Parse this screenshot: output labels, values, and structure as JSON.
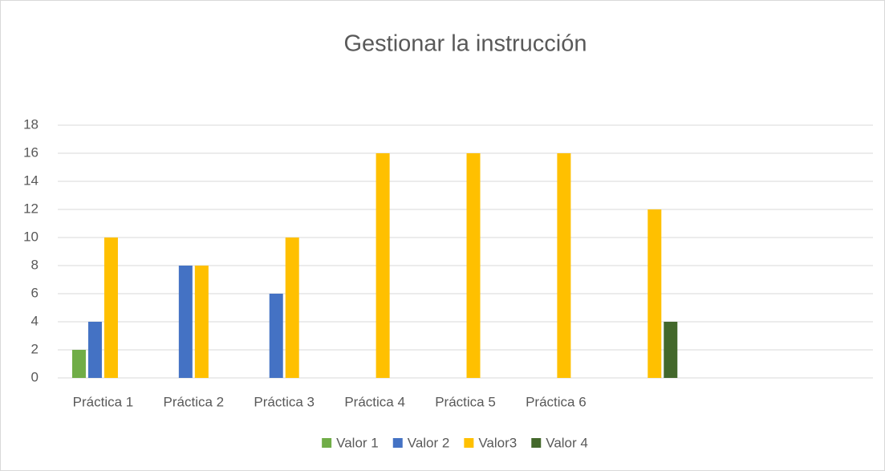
{
  "chart_data": {
    "type": "bar",
    "title": "Gestionar la instrucción",
    "categories": [
      "Práctica 1",
      "Práctica 2",
      "Práctica 3",
      "Práctica 4",
      "Práctica 5",
      "Práctica 6",
      null,
      null,
      null
    ],
    "series": [
      {
        "name": "Valor 1",
        "color": "#70ad47",
        "values": [
          2,
          null,
          null,
          null,
          null,
          null,
          null,
          null,
          null
        ]
      },
      {
        "name": "Valor 2",
        "color": "#4472c4",
        "values": [
          4,
          8,
          6,
          null,
          null,
          null,
          null,
          null,
          null
        ]
      },
      {
        "name": "Valor3",
        "color": "#ffc000",
        "values": [
          10,
          8,
          10,
          16,
          16,
          16,
          12,
          null,
          null
        ]
      },
      {
        "name": "Valor 4",
        "color": "#43682b",
        "values": [
          null,
          null,
          null,
          null,
          null,
          null,
          4,
          null,
          null
        ]
      }
    ],
    "ylim": [
      0,
      18
    ],
    "yticks": [
      0,
      2,
      4,
      6,
      8,
      10,
      12,
      14,
      16,
      18
    ],
    "grid": true,
    "legend": "bottom"
  }
}
